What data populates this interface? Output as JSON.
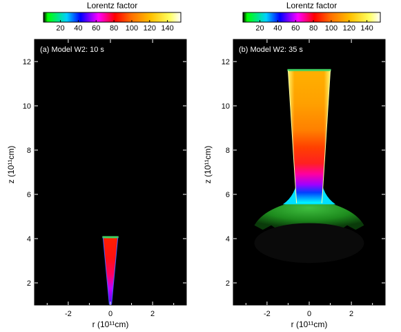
{
  "colorbar": {
    "title": "Lorentz factor",
    "ticks": [
      "20",
      "40",
      "60",
      "80",
      "100",
      "120",
      "140"
    ],
    "tick_values": [
      20,
      40,
      60,
      80,
      100,
      120,
      140
    ],
    "range": [
      1,
      155
    ],
    "colors": [
      "#00ff00",
      "#00cfff",
      "#0000ff",
      "#ff00ff",
      "#ff0000",
      "#ff7f00",
      "#ffbf00",
      "#ffff7f",
      "#ffffff"
    ]
  },
  "axes": {
    "xlabel": "r (10¹¹cm)",
    "ylabel": "z (10¹¹cm)",
    "x_ticks": [
      "-2",
      "0",
      "2"
    ],
    "x_tick_values": [
      -2,
      0,
      2
    ],
    "y_ticks": [
      "2",
      "4",
      "6",
      "8",
      "10",
      "12"
    ],
    "y_tick_values": [
      2,
      4,
      6,
      8,
      10,
      12
    ],
    "xlim": [
      -3.6,
      3.6
    ],
    "ylim": [
      1,
      13
    ]
  },
  "panels": [
    {
      "label": "(a) Model W2: 10 s",
      "jet_base_halfwidth": 0.05,
      "jet_head_halfwidth": 0.35,
      "jet_head_z": 4.05,
      "cocoon": false
    },
    {
      "label": "(b) Model W2: 35 s",
      "jet_base_halfwidth": 0.15,
      "jet_head_halfwidth": 1.0,
      "jet_head_z": 11.6,
      "cocoon": true
    }
  ]
}
